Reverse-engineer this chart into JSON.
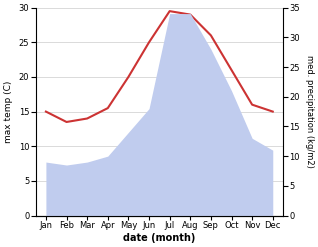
{
  "months": [
    "Jan",
    "Feb",
    "Mar",
    "Apr",
    "May",
    "Jun",
    "Jul",
    "Aug",
    "Sep",
    "Oct",
    "Nov",
    "Dec"
  ],
  "x": [
    1,
    2,
    3,
    4,
    5,
    6,
    7,
    8,
    9,
    10,
    11,
    12
  ],
  "temperature": [
    15,
    13.5,
    14,
    15.5,
    20,
    25,
    29.5,
    29,
    26,
    21,
    16,
    15
  ],
  "precipitation": [
    9,
    8.5,
    9,
    10,
    14,
    18,
    34,
    34,
    28,
    21,
    13,
    11
  ],
  "temp_color": "#cc3333",
  "precip_color": "#c0ccee",
  "ylabel_left": "max temp (C)",
  "ylabel_right": "med. precipitation (kg/m2)",
  "xlabel": "date (month)",
  "ylim_left": [
    0,
    30
  ],
  "ylim_right": [
    0,
    35
  ],
  "yticks_left": [
    0,
    5,
    10,
    15,
    20,
    25,
    30
  ],
  "yticks_right": [
    0,
    5,
    10,
    15,
    20,
    25,
    30,
    35
  ],
  "bg_color": "#ffffff",
  "grid_color": "#cccccc"
}
